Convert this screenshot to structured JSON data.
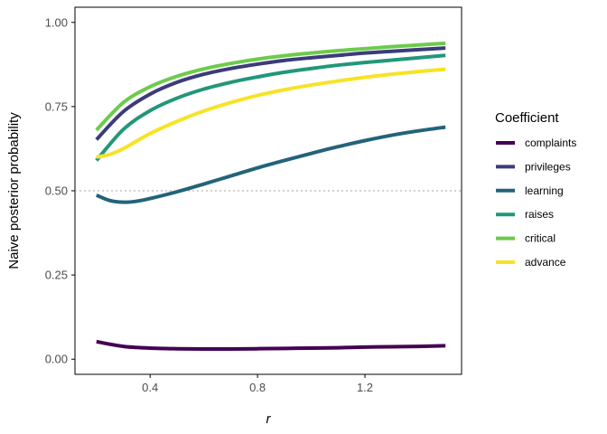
{
  "chart_data": {
    "type": "line",
    "xlabel": "r",
    "ylabel": "Naive posterior probability",
    "xlim": [
      0.12,
      1.56
    ],
    "ylim": [
      -0.045,
      1.045
    ],
    "xticks": [
      0.4,
      0.8,
      1.2
    ],
    "xtick_labels": [
      "0.4",
      "0.8",
      "1.2"
    ],
    "yticks": [
      0.0,
      0.25,
      0.5,
      0.75,
      1.0
    ],
    "ytick_labels": [
      "0.00",
      "0.25",
      "0.50",
      "0.75",
      "1.00"
    ],
    "reference_line": {
      "y": 0.5,
      "style": "dotted",
      "color": "#a0a0a0"
    },
    "grid": false,
    "legend": {
      "title": "Coefficient",
      "placement": "right"
    },
    "series": [
      {
        "name": "complaints",
        "color": "#440154",
        "x": [
          0.2,
          0.3,
          0.4,
          0.5,
          0.6,
          0.7,
          0.8,
          0.9,
          1.0,
          1.1,
          1.2,
          1.3,
          1.4,
          1.5
        ],
        "y": [
          0.052,
          0.038,
          0.033,
          0.031,
          0.03,
          0.03,
          0.031,
          0.032,
          0.033,
          0.034,
          0.036,
          0.037,
          0.038,
          0.04
        ]
      },
      {
        "name": "privileges",
        "color": "#3b3b7c",
        "x": [
          0.2,
          0.3,
          0.4,
          0.5,
          0.6,
          0.7,
          0.8,
          0.9,
          1.0,
          1.1,
          1.2,
          1.3,
          1.4,
          1.5
        ],
        "y": [
          0.652,
          0.735,
          0.787,
          0.822,
          0.846,
          0.863,
          0.876,
          0.887,
          0.895,
          0.902,
          0.909,
          0.914,
          0.919,
          0.924
        ]
      },
      {
        "name": "learning",
        "color": "#24637a",
        "x": [
          0.2,
          0.25,
          0.3,
          0.35,
          0.4,
          0.5,
          0.6,
          0.7,
          0.8,
          0.9,
          1.0,
          1.1,
          1.2,
          1.3,
          1.4,
          1.5
        ],
        "y": [
          0.487,
          0.471,
          0.466,
          0.469,
          0.477,
          0.497,
          0.52,
          0.544,
          0.568,
          0.59,
          0.611,
          0.631,
          0.649,
          0.665,
          0.678,
          0.689
        ]
      },
      {
        "name": "raises",
        "color": "#22977a",
        "x": [
          0.2,
          0.3,
          0.4,
          0.5,
          0.6,
          0.7,
          0.8,
          0.9,
          1.0,
          1.1,
          1.2,
          1.3,
          1.4,
          1.5
        ],
        "y": [
          0.59,
          0.682,
          0.738,
          0.775,
          0.802,
          0.822,
          0.838,
          0.852,
          0.863,
          0.873,
          0.881,
          0.888,
          0.895,
          0.902
        ]
      },
      {
        "name": "critical",
        "color": "#6ccb4b",
        "x": [
          0.2,
          0.3,
          0.4,
          0.5,
          0.6,
          0.7,
          0.8,
          0.9,
          1.0,
          1.1,
          1.2,
          1.3,
          1.4,
          1.5
        ],
        "y": [
          0.68,
          0.762,
          0.809,
          0.84,
          0.862,
          0.878,
          0.891,
          0.901,
          0.909,
          0.916,
          0.922,
          0.928,
          0.933,
          0.938
        ]
      },
      {
        "name": "advance",
        "color": "#f7e325",
        "x": [
          0.2,
          0.25,
          0.3,
          0.4,
          0.5,
          0.6,
          0.7,
          0.8,
          0.9,
          1.0,
          1.1,
          1.2,
          1.3,
          1.4,
          1.5
        ],
        "y": [
          0.6,
          0.608,
          0.625,
          0.67,
          0.706,
          0.737,
          0.762,
          0.783,
          0.8,
          0.814,
          0.826,
          0.837,
          0.846,
          0.854,
          0.861
        ]
      }
    ]
  }
}
